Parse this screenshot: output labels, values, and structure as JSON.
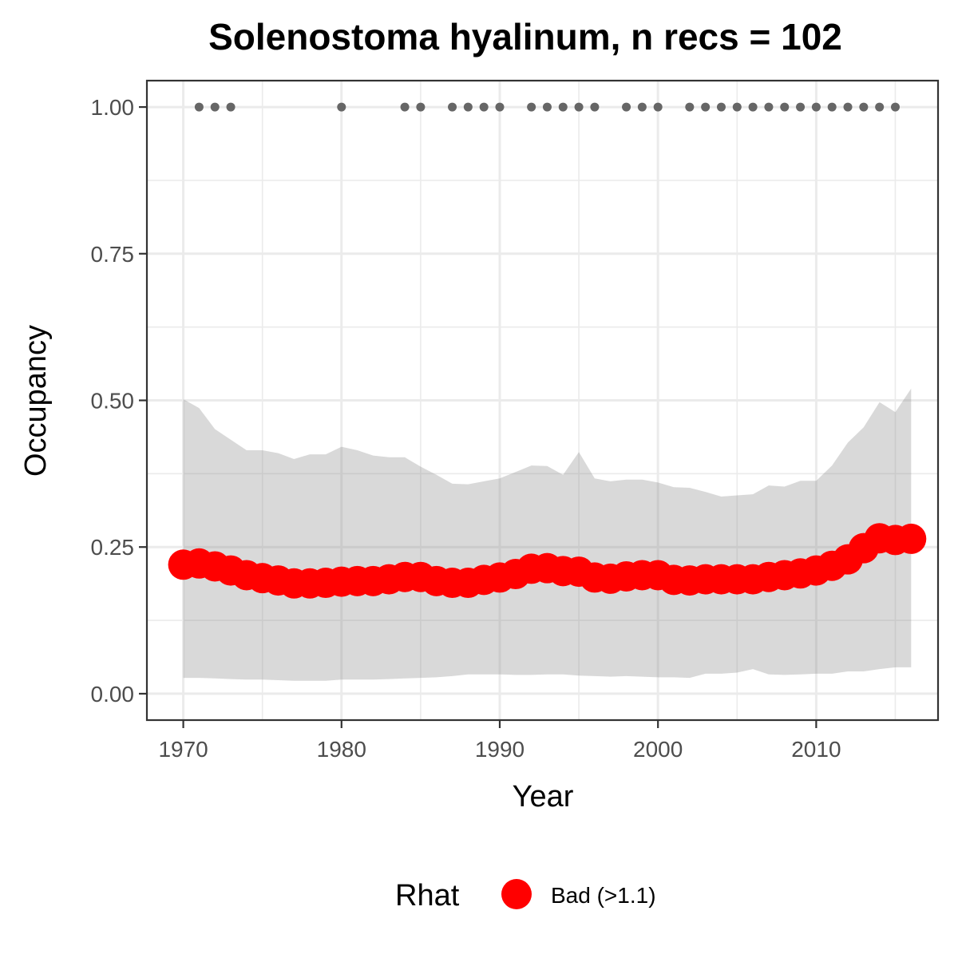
{
  "chart_data": {
    "type": "line",
    "title": "Solenostoma hyalinum, n recs = 102",
    "xlabel": "Year",
    "ylabel": "Occupancy",
    "xlim": [
      1967.7,
      2017.7
    ],
    "ylim": [
      -0.045,
      1.045
    ],
    "x_ticks": [
      1970,
      1980,
      1990,
      2000,
      2010
    ],
    "x_tick_labels": [
      "1970",
      "1980",
      "1990",
      "2000",
      "2010"
    ],
    "y_ticks": [
      0,
      0.25,
      0.5,
      0.75,
      1
    ],
    "y_tick_labels": [
      "0.00",
      "0.25",
      "0.50",
      "0.75",
      "1.00"
    ],
    "grid": true,
    "legend": {
      "placement": "bottom",
      "title": "Rhat",
      "entries": [
        {
          "label": "Bad (>1.1)",
          "color": "#ff0000"
        }
      ]
    },
    "colors": {
      "mean": "#ff0000",
      "ribbon": "#d9d9d9",
      "records": "#666666",
      "grid": "#ebebeb",
      "panel_border": "#333333"
    },
    "years": [
      1970,
      1971,
      1972,
      1973,
      1974,
      1975,
      1976,
      1977,
      1978,
      1979,
      1980,
      1981,
      1982,
      1983,
      1984,
      1985,
      1986,
      1987,
      1988,
      1989,
      1990,
      1991,
      1992,
      1993,
      1994,
      1995,
      1996,
      1997,
      1998,
      1999,
      2000,
      2001,
      2002,
      2003,
      2004,
      2005,
      2006,
      2007,
      2008,
      2009,
      2010,
      2011,
      2012,
      2013,
      2014,
      2015,
      2016
    ],
    "series": [
      {
        "name": "Bad (>1.1)",
        "values": [
          0.22,
          0.222,
          0.217,
          0.21,
          0.202,
          0.197,
          0.193,
          0.188,
          0.188,
          0.189,
          0.191,
          0.192,
          0.192,
          0.195,
          0.199,
          0.199,
          0.192,
          0.189,
          0.189,
          0.194,
          0.198,
          0.204,
          0.213,
          0.214,
          0.209,
          0.208,
          0.198,
          0.196,
          0.2,
          0.202,
          0.202,
          0.194,
          0.193,
          0.195,
          0.195,
          0.195,
          0.195,
          0.199,
          0.202,
          0.205,
          0.21,
          0.218,
          0.229,
          0.248,
          0.265,
          0.262,
          0.264
        ]
      }
    ],
    "ribbon_upper": [
      0.502,
      0.487,
      0.451,
      0.433,
      0.415,
      0.415,
      0.41,
      0.4,
      0.408,
      0.408,
      0.421,
      0.415,
      0.406,
      0.403,
      0.403,
      0.387,
      0.373,
      0.358,
      0.357,
      0.362,
      0.367,
      0.378,
      0.389,
      0.388,
      0.373,
      0.412,
      0.367,
      0.362,
      0.365,
      0.365,
      0.36,
      0.352,
      0.351,
      0.344,
      0.336,
      0.338,
      0.34,
      0.355,
      0.353,
      0.363,
      0.363,
      0.389,
      0.428,
      0.454,
      0.497,
      0.48,
      0.52
    ],
    "ribbon_lower": [
      0.027,
      0.027,
      0.026,
      0.025,
      0.024,
      0.024,
      0.023,
      0.022,
      0.022,
      0.022,
      0.024,
      0.024,
      0.024,
      0.025,
      0.026,
      0.027,
      0.028,
      0.03,
      0.033,
      0.033,
      0.033,
      0.032,
      0.032,
      0.033,
      0.033,
      0.031,
      0.03,
      0.029,
      0.03,
      0.029,
      0.028,
      0.028,
      0.027,
      0.034,
      0.034,
      0.036,
      0.042,
      0.033,
      0.032,
      0.033,
      0.034,
      0.034,
      0.038,
      0.038,
      0.042,
      0.045,
      0.045
    ],
    "record_years": [
      1971,
      1972,
      1973,
      1980,
      1984,
      1985,
      1987,
      1988,
      1989,
      1990,
      1992,
      1993,
      1994,
      1995,
      1996,
      1998,
      1999,
      2000,
      2002,
      2003,
      2004,
      2005,
      2006,
      2007,
      2008,
      2009,
      2010,
      2011,
      2012,
      2013,
      2014,
      2015
    ],
    "record_value": 1.0
  }
}
